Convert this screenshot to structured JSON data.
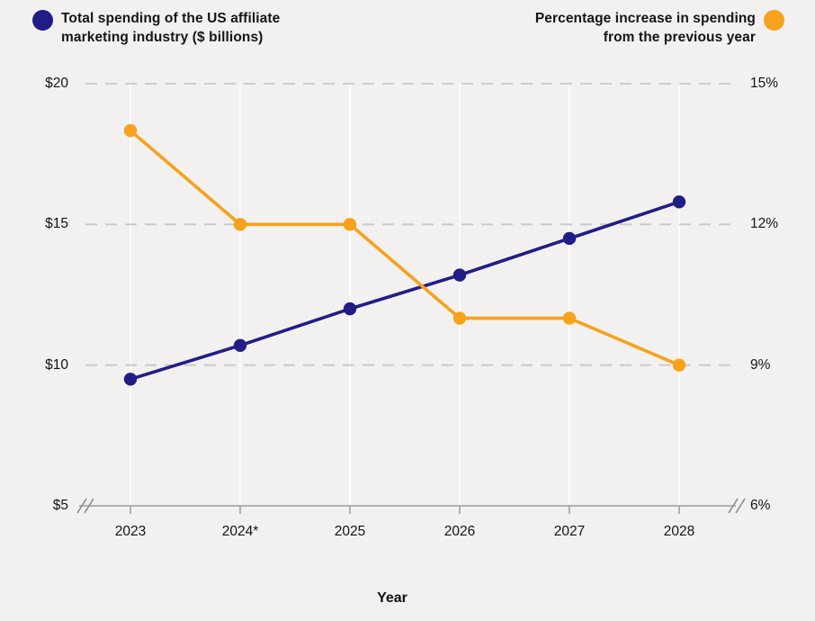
{
  "legend": {
    "left": {
      "label": "Total spending of the US affiliate marketing industry ($ billions)",
      "color": "#211D87"
    },
    "right": {
      "label": "Percentage increase in spending from the previous year",
      "color": "#F7A11D"
    }
  },
  "chart_data": {
    "type": "line",
    "title": "",
    "x": [
      "2023",
      "2024*",
      "2025",
      "2026",
      "2027",
      "2028"
    ],
    "xlabel": "Year",
    "series": [
      {
        "id": "spending",
        "name": "Total spending of the US affiliate marketing industry ($ billions)",
        "axis": "left",
        "color": "#211D87",
        "values": [
          9.5,
          10.7,
          12.0,
          13.2,
          14.5,
          15.8
        ]
      },
      {
        "id": "percentage",
        "name": "Percentage increase in spending from the previous year",
        "axis": "right",
        "color": "#F7A11D",
        "values": [
          14,
          12,
          12,
          10,
          10,
          9
        ]
      }
    ],
    "left_axis": {
      "min": 5,
      "max": 20,
      "axis_break": true,
      "ticks": [
        {
          "value": 20,
          "label": "$20"
        },
        {
          "value": 15,
          "label": "$15"
        },
        {
          "value": 10,
          "label": "$10"
        },
        {
          "value": 5,
          "label": "$5"
        }
      ]
    },
    "right_axis": {
      "min": 6,
      "max": 15,
      "axis_break": true,
      "ticks": [
        {
          "value": 15,
          "label": "15%"
        },
        {
          "value": 12,
          "label": "12%"
        },
        {
          "value": 9,
          "label": "9%"
        },
        {
          "value": 6,
          "label": "6%"
        }
      ]
    },
    "grid": {
      "horizontal": "dashed",
      "vertical": "faint"
    },
    "colors": {
      "background": "#F2F1EF",
      "grid_dashed": "#C9C8C6",
      "grid_vertical": "#FBFBFA",
      "axis": "#9C9B99",
      "text": "#141414"
    }
  }
}
